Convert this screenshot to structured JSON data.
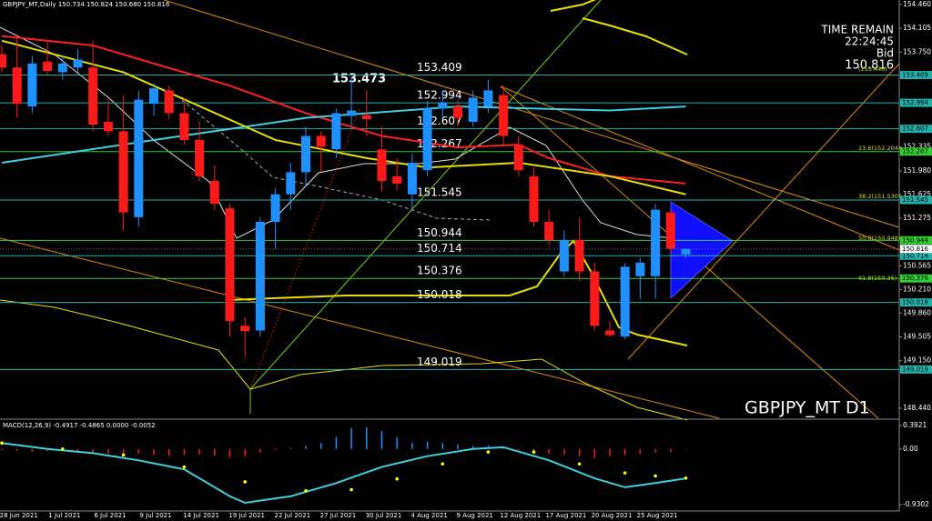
{
  "chart_data": {
    "type": "candlestick",
    "title": "GBPJPY_MT,Daily 150.734 150.824 150.680 150.816",
    "watermark": "GBPJPY_MT D1",
    "timer": {
      "caption": "TIME REMAIN",
      "time": "22:24:45",
      "bid_caption": "Bid",
      "bid": 150.816
    },
    "high_label": 153.473,
    "categories": [
      null,
      "28 Jun 2021",
      null,
      null,
      "1 Jul 2021",
      null,
      null,
      "6 Jul 2021",
      null,
      null,
      "9 Jul 2021",
      null,
      null,
      "14 Jul 2021",
      null,
      null,
      "19 Jul 2021",
      null,
      null,
      "22 Jul 2021",
      null,
      null,
      "27 Jul 2021",
      null,
      null,
      "30 Jul 2021",
      null,
      null,
      "4 Aug 2021",
      null,
      null,
      "9 Aug 2021",
      null,
      null,
      "12 Aug 2021",
      null,
      null,
      "17 Aug 2021",
      null,
      null,
      "20 Aug 2021",
      null,
      null,
      "25 Aug 2021",
      null,
      null
    ],
    "open": [
      153.72,
      153.52,
      152.94,
      153.61,
      153.45,
      153.52,
      153.52,
      152.71,
      152.57,
      151.29,
      152.98,
      153.18,
      152.84,
      152.44,
      151.83,
      151.42,
      149.67,
      149.6,
      151.22,
      151.63,
      151.96,
      152.5,
      152.3,
      152.8,
      152.81,
      152.3,
      151.9,
      151.63,
      151.99,
      152.91,
      152.94,
      152.71,
      152.94,
      153.11,
      152.37,
      151.9,
      151.22,
      150.48,
      150.95,
      150.48,
      149.6,
      149.51,
      150.41,
      150.41,
      151.36,
      150.734
    ],
    "high": [
      153.85,
      153.99,
      153.69,
      153.92,
      153.69,
      153.79,
      153.92,
      153.04,
      153.11,
      153.18,
      153.29,
      153.25,
      153.07,
      152.71,
      152.07,
      151.49,
      149.8,
      151.29,
      151.72,
      152.1,
      152.64,
      152.57,
      152.91,
      153.38,
      153.18,
      152.64,
      152.17,
      152.23,
      153.02,
      153.18,
      153.04,
      153.18,
      153.34,
      153.25,
      152.5,
      152.03,
      151.4,
      151.09,
      151.29,
      150.61,
      149.74,
      150.61,
      150.68,
      151.49,
      151.4,
      150.824
    ],
    "low": [
      153.45,
      152.77,
      152.84,
      153.42,
      153.34,
      153.45,
      152.57,
      152.5,
      151.09,
      151.15,
      152.8,
      152.75,
      152.37,
      151.83,
      151.4,
      149.51,
      149.2,
      149.51,
      150.82,
      151.4,
      151.76,
      151.96,
      152.17,
      152.64,
      152.5,
      151.67,
      151.69,
      151.4,
      151.9,
      152.77,
      152.64,
      152.64,
      152.84,
      152.37,
      151.9,
      151.15,
      150.88,
      150.41,
      150.34,
      149.6,
      149.51,
      149.47,
      150.07,
      150.07,
      150.75,
      150.68
    ],
    "close": [
      153.52,
      152.98,
      153.58,
      153.47,
      153.58,
      153.64,
      152.67,
      152.57,
      151.36,
      153.04,
      153.21,
      152.84,
      152.44,
      151.9,
      151.49,
      149.74,
      149.59,
      151.22,
      151.63,
      151.96,
      152.5,
      152.34,
      152.84,
      152.88,
      152.75,
      151.83,
      151.79,
      152.1,
      152.91,
      153.0,
      152.77,
      153.07,
      153.18,
      152.5,
      151.99,
      151.22,
      150.95,
      150.95,
      150.48,
      149.67,
      149.53,
      150.55,
      150.61,
      151.4,
      150.82,
      150.816
    ],
    "up_color": "#1e90ff",
    "down_color": "#ff1a1a",
    "overlays": [
      {
        "color": "#ff2020",
        "x": [
          0,
          6,
          10,
          15,
          20,
          25,
          30,
          34,
          36,
          40,
          45
        ],
        "values": [
          153.99,
          153.85,
          153.58,
          153.25,
          152.84,
          152.5,
          152.33,
          152.37,
          152.17,
          151.9,
          151.79
        ]
      },
      {
        "color": "#3fd0e0",
        "x": [
          0,
          10,
          20,
          30,
          40,
          45
        ],
        "values": [
          152.1,
          152.44,
          152.77,
          152.94,
          152.88,
          152.94
        ]
      },
      {
        "color": "#e8e000",
        "x": [
          0,
          8,
          18,
          24,
          28,
          34,
          40,
          45
        ],
        "values": [
          153.92,
          153.45,
          152.44,
          152.17,
          152.03,
          152.1,
          151.9,
          151.63
        ]
      }
    ],
    "levels": [
      {
        "value": 153.409,
        "color": "#20b2aa"
      },
      {
        "value": 152.994,
        "color": "#20b2aa"
      },
      {
        "value": 152.607,
        "color": "#20b2aa"
      },
      {
        "value": 152.267,
        "color": "#32cd32"
      },
      {
        "value": 151.545,
        "color": "#20b2aa"
      },
      {
        "value": 150.944,
        "color": "#32cd32"
      },
      {
        "value": 150.714,
        "color": "#20b2aa"
      },
      {
        "value": 150.376,
        "color": "#32cd32"
      },
      {
        "value": 150.018,
        "color": "#20b2aa"
      },
      {
        "value": 149.019,
        "color": "#20b2aa"
      }
    ],
    "fib_labels": [
      "(153.440)",
      "23.6(152.204)",
      "38.2(151.530)",
      "50.0(150.948)",
      "61.8(150.36)"
    ],
    "ylim": [
      148.4,
      154.5
    ],
    "yticks": [
      {
        "value": 154.46,
        "label": "154.460"
      },
      154.105,
      {
        "value": 153.75,
        "label": "153.750"
      },
      152.335,
      {
        "value": 151.98,
        "label": "151.980"
      },
      151.625,
      151.275,
      150.565,
      {
        "value": 150.21,
        "label": "150.210"
      },
      {
        "value": 149.86,
        "label": "149.860"
      },
      149.505,
      {
        "value": 149.15,
        "label": "149.150"
      },
      {
        "value": 148.44,
        "label": "148.440"
      }
    ],
    "macd": {
      "title": "MACD(12,26,9) -0.4917 -0.4865 0.0000 -0.0052",
      "ylim": [
        -0.9302,
        0.3921
      ],
      "yticks": [
        0.3921,
        {
          "value": 0,
          "label": "0.00"
        },
        -0.9302
      ],
      "histogram": [
        -0.02,
        -0.03,
        -0.05,
        -0.04,
        -0.03,
        -0.05,
        -0.06,
        -0.08,
        -0.1,
        -0.08,
        -0.1,
        -0.12,
        -0.1,
        -0.09,
        -0.11,
        -0.14,
        -0.12,
        -0.06,
        -0.02,
        0.02,
        0.05,
        0.1,
        0.2,
        0.35,
        0.36,
        0.3,
        0.2,
        0.1,
        0.12,
        0.1,
        0.08,
        0.05,
        0.06,
        0.02,
        -0.02,
        -0.05,
        -0.08,
        -0.1,
        -0.12,
        -0.15,
        -0.12,
        -0.1,
        -0.08,
        -0.06,
        -0.05,
        -0.005
      ],
      "up_color": "#1e90ff",
      "down_color": "#ff1a1a",
      "line": {
        "color": "#3fd0e0",
        "x": [
          0,
          3,
          6,
          9,
          12,
          15,
          16,
          19,
          22,
          25,
          28,
          31,
          33,
          36,
          39,
          41,
          43,
          45
        ],
        "values": [
          0.1,
          0,
          -0.07,
          -0.19,
          -0.34,
          -0.79,
          -0.9,
          -0.79,
          -0.57,
          -0.3,
          -0.12,
          0,
          0.03,
          -0.19,
          -0.49,
          -0.64,
          -0.57,
          -0.4917
        ]
      },
      "signal": {
        "color": "#ffff00",
        "x": [
          0,
          4,
          8,
          12,
          16,
          20,
          23,
          26,
          29,
          32,
          35,
          38,
          41,
          43,
          45
        ],
        "values": [
          0.1,
          0,
          -0.1,
          -0.3,
          -0.55,
          -0.7,
          -0.68,
          -0.5,
          -0.25,
          -0.05,
          -0.05,
          -0.25,
          -0.4,
          -0.45,
          -0.4865
        ]
      }
    }
  }
}
